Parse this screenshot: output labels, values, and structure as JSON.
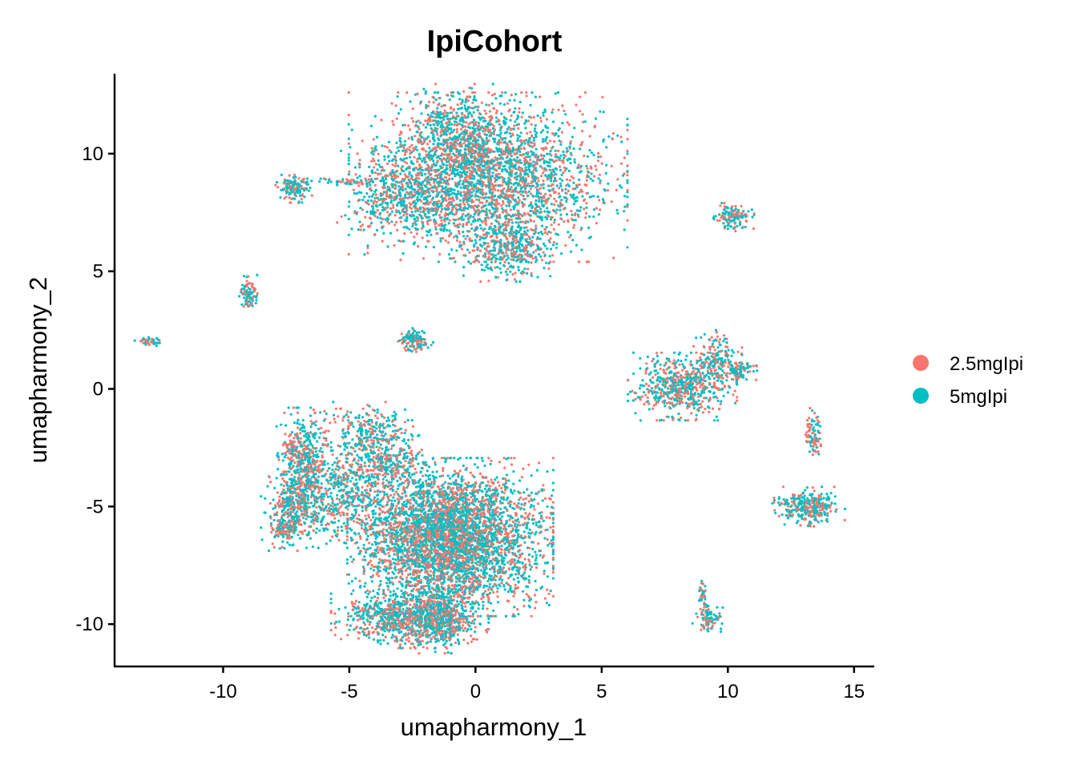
{
  "chart_data": {
    "type": "scatter",
    "title": "IpiCohort",
    "xlabel": "umapharmony_1",
    "ylabel": "umapharmony_2",
    "xlim": [
      -14.3,
      15.8
    ],
    "ylim": [
      -11.8,
      13.4
    ],
    "xticks": [
      -10,
      -5,
      0,
      5,
      10,
      15
    ],
    "xtick_labels": [
      "-10",
      "-5",
      "0",
      "5",
      "10",
      "15"
    ],
    "yticks": [
      -10,
      -5,
      0,
      5,
      10
    ],
    "ytick_labels": [
      "-10",
      "-5",
      "0",
      "5",
      "10"
    ],
    "grid": false,
    "legend_position": "right",
    "series": [
      {
        "name": "2.5mgIpi",
        "color": "#F8766D"
      },
      {
        "name": "5mgIpi",
        "color": "#00BFC4"
      }
    ],
    "clusters": [
      {
        "center": [
          0.5,
          9.0
        ],
        "spread": [
          2.3,
          1.5
        ],
        "n": 2600
      },
      {
        "center": [
          -0.8,
          10.8
        ],
        "spread": [
          0.9,
          0.9
        ],
        "n": 500
      },
      {
        "center": [
          1.3,
          6.0
        ],
        "spread": [
          0.8,
          0.6
        ],
        "n": 400
      },
      {
        "center": [
          -2.6,
          8.2
        ],
        "spread": [
          1.2,
          0.8
        ],
        "n": 500
      },
      {
        "center": [
          -7.2,
          8.5
        ],
        "spread": [
          0.3,
          0.25
        ],
        "n": 120
      },
      {
        "center": [
          -5.5,
          8.8
        ],
        "spread": [
          0.8,
          0.08
        ],
        "n": 40
      },
      {
        "center": [
          10.2,
          7.3
        ],
        "spread": [
          0.35,
          0.25
        ],
        "n": 130
      },
      {
        "center": [
          -9.0,
          4.0
        ],
        "spread": [
          0.15,
          0.35
        ],
        "n": 90
      },
      {
        "center": [
          -12.9,
          2.0
        ],
        "spread": [
          0.25,
          0.08
        ],
        "n": 40
      },
      {
        "center": [
          -2.4,
          2.1
        ],
        "spread": [
          0.3,
          0.25
        ],
        "n": 110
      },
      {
        "center": [
          8.2,
          0.1
        ],
        "spread": [
          0.9,
          0.6
        ],
        "n": 600
      },
      {
        "center": [
          9.6,
          1.3
        ],
        "spread": [
          0.4,
          0.5
        ],
        "n": 160
      },
      {
        "center": [
          10.5,
          0.8
        ],
        "spread": [
          0.3,
          0.2
        ],
        "n": 80
      },
      {
        "center": [
          13.2,
          -5.0
        ],
        "spread": [
          0.6,
          0.35
        ],
        "n": 320
      },
      {
        "center": [
          13.4,
          -2.0
        ],
        "spread": [
          0.15,
          0.5
        ],
        "n": 90
      },
      {
        "center": [
          9.2,
          -9.8
        ],
        "spread": [
          0.25,
          0.25
        ],
        "n": 80
      },
      {
        "center": [
          9.0,
          -8.9
        ],
        "spread": [
          0.1,
          0.35
        ],
        "n": 40
      },
      {
        "center": [
          -1.0,
          -6.3
        ],
        "spread": [
          1.7,
          1.4
        ],
        "n": 4200
      },
      {
        "center": [
          -2.6,
          -9.7
        ],
        "spread": [
          1.3,
          0.55
        ],
        "n": 900
      },
      {
        "center": [
          -1.3,
          -9.8
        ],
        "spread": [
          0.5,
          0.6
        ],
        "n": 350
      },
      {
        "center": [
          -6.8,
          -3.2
        ],
        "spread": [
          0.45,
          1.0
        ],
        "n": 500
      },
      {
        "center": [
          -7.3,
          -5.2
        ],
        "spread": [
          0.5,
          0.7
        ],
        "n": 300
      },
      {
        "center": [
          -7.7,
          -6.0
        ],
        "spread": [
          0.2,
          0.2
        ],
        "n": 60
      },
      {
        "center": [
          -5.3,
          -4.6
        ],
        "spread": [
          1.0,
          0.9
        ],
        "n": 500
      },
      {
        "center": [
          -4.0,
          -2.0
        ],
        "spread": [
          0.8,
          0.6
        ],
        "n": 300
      },
      {
        "center": [
          -3.5,
          -3.2
        ],
        "spread": [
          0.7,
          0.5
        ],
        "n": 250
      }
    ]
  },
  "legend": {
    "items": [
      {
        "label": "2.5mgIpi",
        "color": "#F8766D"
      },
      {
        "label": "5mgIpi",
        "color": "#00BFC4"
      }
    ]
  }
}
